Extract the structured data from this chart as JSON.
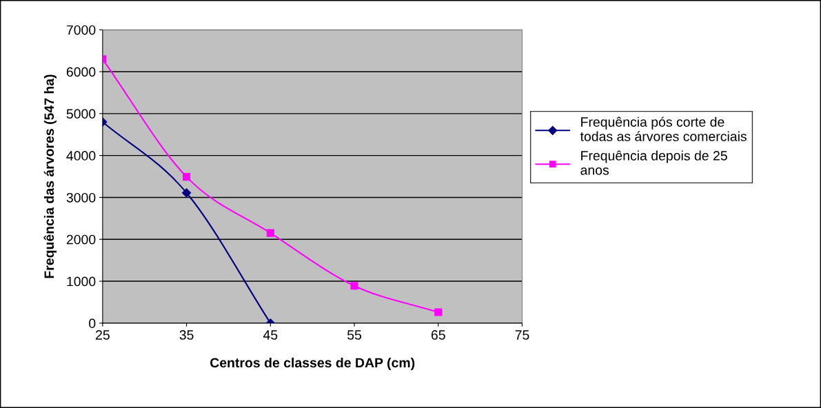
{
  "chart_data": {
    "type": "line",
    "xlabel": "Centros de classes de DAP (cm)",
    "ylabel": "Frequência das árvores (547 ha)",
    "xlim": [
      25,
      75
    ],
    "xticks": [
      25,
      35,
      45,
      55,
      65,
      75
    ],
    "ylim": [
      0,
      7000
    ],
    "yticks": [
      0,
      1000,
      2000,
      3000,
      4000,
      5000,
      6000,
      7000
    ],
    "grid": "y",
    "legend": "right",
    "line_style": "solid",
    "series": [
      {
        "name": "Frequência pós corte de todas as árvores comerciais",
        "color": "#000080",
        "marker": "diamond",
        "x": [
          25,
          35,
          45
        ],
        "values": [
          4800,
          3110,
          0
        ]
      },
      {
        "name": "Frequência depois de 25 anos",
        "color": "#ff00ff",
        "marker": "square",
        "x": [
          25,
          35,
          45,
          55,
          65
        ],
        "values": [
          6300,
          3490,
          2150,
          890,
          260
        ]
      }
    ]
  }
}
